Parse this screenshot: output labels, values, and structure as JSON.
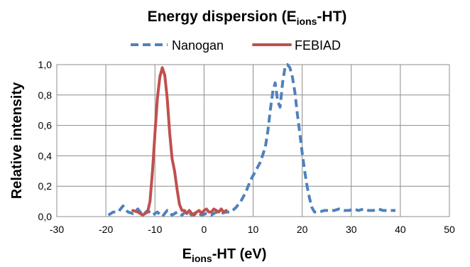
{
  "chart_data": {
    "type": "line",
    "title": {
      "prefix": "Energy dispersion (E",
      "subscript": "ions",
      "suffix": "-HT)"
    },
    "xlabel": {
      "prefix": "E",
      "subscript": "ions",
      "suffix": "-HT (eV)"
    },
    "ylabel": "Relative intensity",
    "xlim": [
      -30,
      50
    ],
    "ylim": [
      0,
      1.0
    ],
    "xticks": [
      -30,
      -20,
      -10,
      0,
      10,
      20,
      30,
      40,
      50
    ],
    "xtick_labels": [
      "-30",
      "-20",
      "-10",
      "0",
      "10",
      "20",
      "30",
      "40",
      "50"
    ],
    "yticks": [
      0,
      0.2,
      0.4,
      0.6,
      0.8,
      1.0
    ],
    "ytick_labels": [
      "0,0",
      "0,2",
      "0,4",
      "0,6",
      "0,8",
      "1,0"
    ],
    "grid": true,
    "legend_position": "top",
    "series": [
      {
        "name": "Nanogan",
        "color": "#4f81bd",
        "style": "dashed",
        "x": [
          -19.5,
          -18.5,
          -17.5,
          -16.5,
          -15.5,
          -14.5,
          -13.5,
          -12.5,
          -11.5,
          -10.5,
          -9.5,
          -8.5,
          -7.5,
          -6.5,
          -5.5,
          -4.5,
          -3.5,
          -2.5,
          -1.5,
          -0.5,
          0.5,
          1.5,
          2.5,
          3.5,
          4.5,
          5.5,
          6.5,
          7.5,
          8.5,
          9.5,
          10.5,
          11.5,
          12.5,
          13.0,
          13.5,
          14.0,
          14.5,
          15.0,
          15.5,
          16.0,
          16.5,
          17.0,
          17.5,
          18.0,
          18.5,
          19.0,
          19.5,
          20.0,
          20.5,
          21.0,
          21.5,
          22.0,
          22.5,
          23.5,
          24.5,
          25.5,
          26.5,
          27.5,
          28.5,
          29.5,
          30.5,
          31.5,
          32.5,
          33.5,
          34.5,
          35.5,
          36.5,
          37.5,
          38.5,
          39.0
        ],
        "y": [
          0.01,
          0.03,
          0.03,
          0.07,
          0.03,
          0.02,
          0.05,
          0.01,
          0.04,
          0.01,
          0.03,
          0.0,
          0.04,
          0.01,
          0.03,
          0.01,
          0.04,
          0.01,
          0.03,
          0.01,
          0.02,
          0.01,
          0.03,
          0.02,
          0.03,
          0.03,
          0.06,
          0.1,
          0.16,
          0.24,
          0.3,
          0.36,
          0.46,
          0.56,
          0.7,
          0.82,
          0.88,
          0.76,
          0.72,
          0.88,
          0.98,
          1.0,
          0.98,
          0.92,
          0.82,
          0.68,
          0.55,
          0.42,
          0.3,
          0.2,
          0.12,
          0.06,
          0.03,
          0.03,
          0.04,
          0.04,
          0.04,
          0.05,
          0.04,
          0.04,
          0.05,
          0.04,
          0.05,
          0.04,
          0.04,
          0.05,
          0.04,
          0.04,
          0.04,
          0.04
        ]
      },
      {
        "name": "FEBIAD",
        "color": "#c0504d",
        "style": "solid",
        "x": [
          -14.5,
          -13.5,
          -12.5,
          -11.5,
          -11.0,
          -10.5,
          -10.0,
          -9.5,
          -9.0,
          -8.5,
          -8.0,
          -7.5,
          -7.0,
          -6.5,
          -6.0,
          -5.5,
          -5.0,
          -4.5,
          -4.0,
          -3.5,
          -3.0,
          -2.5,
          -2.0,
          -1.5,
          -1.0,
          -0.5,
          0.0,
          0.5,
          1.0,
          1.5,
          2.0,
          2.5,
          3.0,
          3.5,
          4.0,
          4.5
        ],
        "y": [
          0.04,
          0.03,
          0.01,
          0.03,
          0.1,
          0.3,
          0.55,
          0.78,
          0.92,
          0.98,
          0.93,
          0.78,
          0.55,
          0.38,
          0.3,
          0.18,
          0.08,
          0.04,
          0.04,
          0.02,
          0.04,
          0.02,
          0.01,
          0.03,
          0.04,
          0.02,
          0.04,
          0.05,
          0.03,
          0.03,
          0.05,
          0.04,
          0.03,
          0.05,
          0.03,
          0.04
        ]
      }
    ]
  }
}
